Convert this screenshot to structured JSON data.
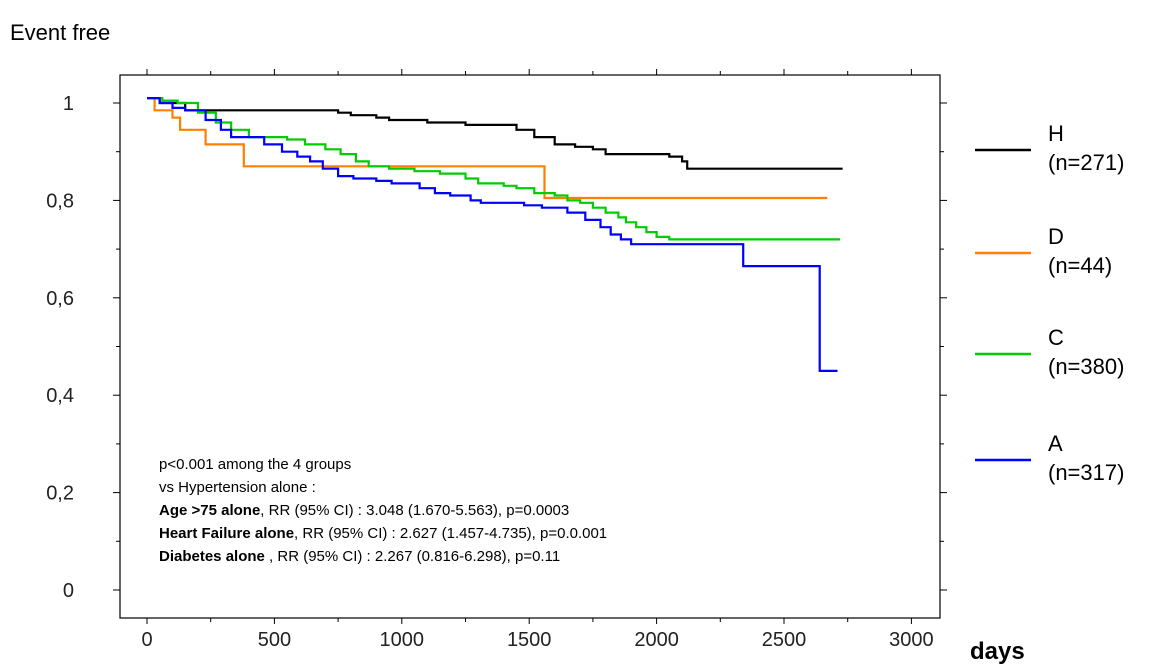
{
  "chart_data": {
    "type": "line",
    "step": true,
    "ylabel": "Event free",
    "xlabel": "days",
    "xlim": [
      0,
      3000
    ],
    "ylim": [
      0,
      1
    ],
    "x_ticks": [
      0,
      500,
      1000,
      1500,
      2000,
      2500,
      3000
    ],
    "x_tick_labels": [
      "0",
      "500",
      "1000",
      "1500",
      "2000",
      "2500",
      "3000"
    ],
    "y_ticks": [
      0,
      0.2,
      0.4,
      0.6,
      0.8,
      1
    ],
    "y_tick_labels": [
      "0",
      "0,2",
      "0,4",
      "0,6",
      "0,8",
      "1"
    ],
    "grid": false,
    "legend_position": "right",
    "series": [
      {
        "name": "H",
        "n_label": "(n=271)",
        "color": "#000000",
        "points": [
          [
            0,
            1.01
          ],
          [
            50,
            1.0
          ],
          [
            150,
            0.985
          ],
          [
            750,
            0.98
          ],
          [
            800,
            0.975
          ],
          [
            900,
            0.97
          ],
          [
            950,
            0.965
          ],
          [
            1100,
            0.96
          ],
          [
            1250,
            0.955
          ],
          [
            1450,
            0.945
          ],
          [
            1520,
            0.93
          ],
          [
            1600,
            0.915
          ],
          [
            1680,
            0.91
          ],
          [
            1750,
            0.905
          ],
          [
            1800,
            0.895
          ],
          [
            2050,
            0.89
          ],
          [
            2100,
            0.88
          ],
          [
            2120,
            0.865
          ],
          [
            2730,
            0.865
          ]
        ]
      },
      {
        "name": "D",
        "n_label": "(n=44)",
        "color": "#ff8000",
        "points": [
          [
            0,
            1.01
          ],
          [
            30,
            0.985
          ],
          [
            100,
            0.97
          ],
          [
            130,
            0.945
          ],
          [
            230,
            0.915
          ],
          [
            380,
            0.87
          ],
          [
            1550,
            0.87
          ],
          [
            1560,
            0.805
          ],
          [
            2670,
            0.805
          ]
        ]
      },
      {
        "name": "C",
        "n_label": "(n=380)",
        "color": "#00cc00",
        "points": [
          [
            0,
            1.01
          ],
          [
            60,
            1.005
          ],
          [
            120,
            1.0
          ],
          [
            200,
            0.98
          ],
          [
            270,
            0.96
          ],
          [
            330,
            0.945
          ],
          [
            400,
            0.93
          ],
          [
            550,
            0.925
          ],
          [
            620,
            0.915
          ],
          [
            700,
            0.905
          ],
          [
            760,
            0.895
          ],
          [
            820,
            0.88
          ],
          [
            870,
            0.87
          ],
          [
            950,
            0.865
          ],
          [
            1050,
            0.86
          ],
          [
            1150,
            0.855
          ],
          [
            1250,
            0.845
          ],
          [
            1300,
            0.835
          ],
          [
            1400,
            0.83
          ],
          [
            1450,
            0.825
          ],
          [
            1520,
            0.815
          ],
          [
            1600,
            0.81
          ],
          [
            1650,
            0.8
          ],
          [
            1700,
            0.795
          ],
          [
            1750,
            0.785
          ],
          [
            1800,
            0.775
          ],
          [
            1850,
            0.765
          ],
          [
            1880,
            0.755
          ],
          [
            1920,
            0.745
          ],
          [
            1960,
            0.735
          ],
          [
            2000,
            0.725
          ],
          [
            2050,
            0.72
          ],
          [
            2720,
            0.72
          ]
        ]
      },
      {
        "name": "A",
        "n_label": "(n=317)",
        "color": "#0000ff",
        "points": [
          [
            0,
            1.01
          ],
          [
            50,
            1.0
          ],
          [
            100,
            0.99
          ],
          [
            150,
            0.985
          ],
          [
            230,
            0.965
          ],
          [
            290,
            0.945
          ],
          [
            330,
            0.93
          ],
          [
            460,
            0.915
          ],
          [
            530,
            0.9
          ],
          [
            590,
            0.89
          ],
          [
            640,
            0.88
          ],
          [
            690,
            0.865
          ],
          [
            750,
            0.85
          ],
          [
            810,
            0.845
          ],
          [
            900,
            0.84
          ],
          [
            960,
            0.835
          ],
          [
            1070,
            0.825
          ],
          [
            1130,
            0.815
          ],
          [
            1190,
            0.81
          ],
          [
            1270,
            0.8
          ],
          [
            1310,
            0.795
          ],
          [
            1480,
            0.79
          ],
          [
            1550,
            0.785
          ],
          [
            1650,
            0.775
          ],
          [
            1720,
            0.76
          ],
          [
            1780,
            0.745
          ],
          [
            1820,
            0.73
          ],
          [
            1860,
            0.72
          ],
          [
            1900,
            0.71
          ],
          [
            2340,
            0.665
          ],
          [
            2640,
            0.45
          ],
          [
            2710,
            0.45
          ]
        ]
      }
    ],
    "annotations": [
      {
        "bold": "",
        "text": "p<0.001 among the 4 groups"
      },
      {
        "bold": "",
        "text": "vs Hypertension alone :"
      },
      {
        "bold": "Age >75 alone",
        "text": ", RR (95% CI) : 3.048 (1.670-5.563), p=0.0003"
      },
      {
        "bold": "Heart Failure alone",
        "text": ", RR (95% CI) : 2.627 (1.457-4.735), p=0.0.001"
      },
      {
        "bold": "Diabetes alone",
        "text": " , RR (95% CI) : 2.267 (0.816-6.298), p=0.11"
      }
    ]
  }
}
